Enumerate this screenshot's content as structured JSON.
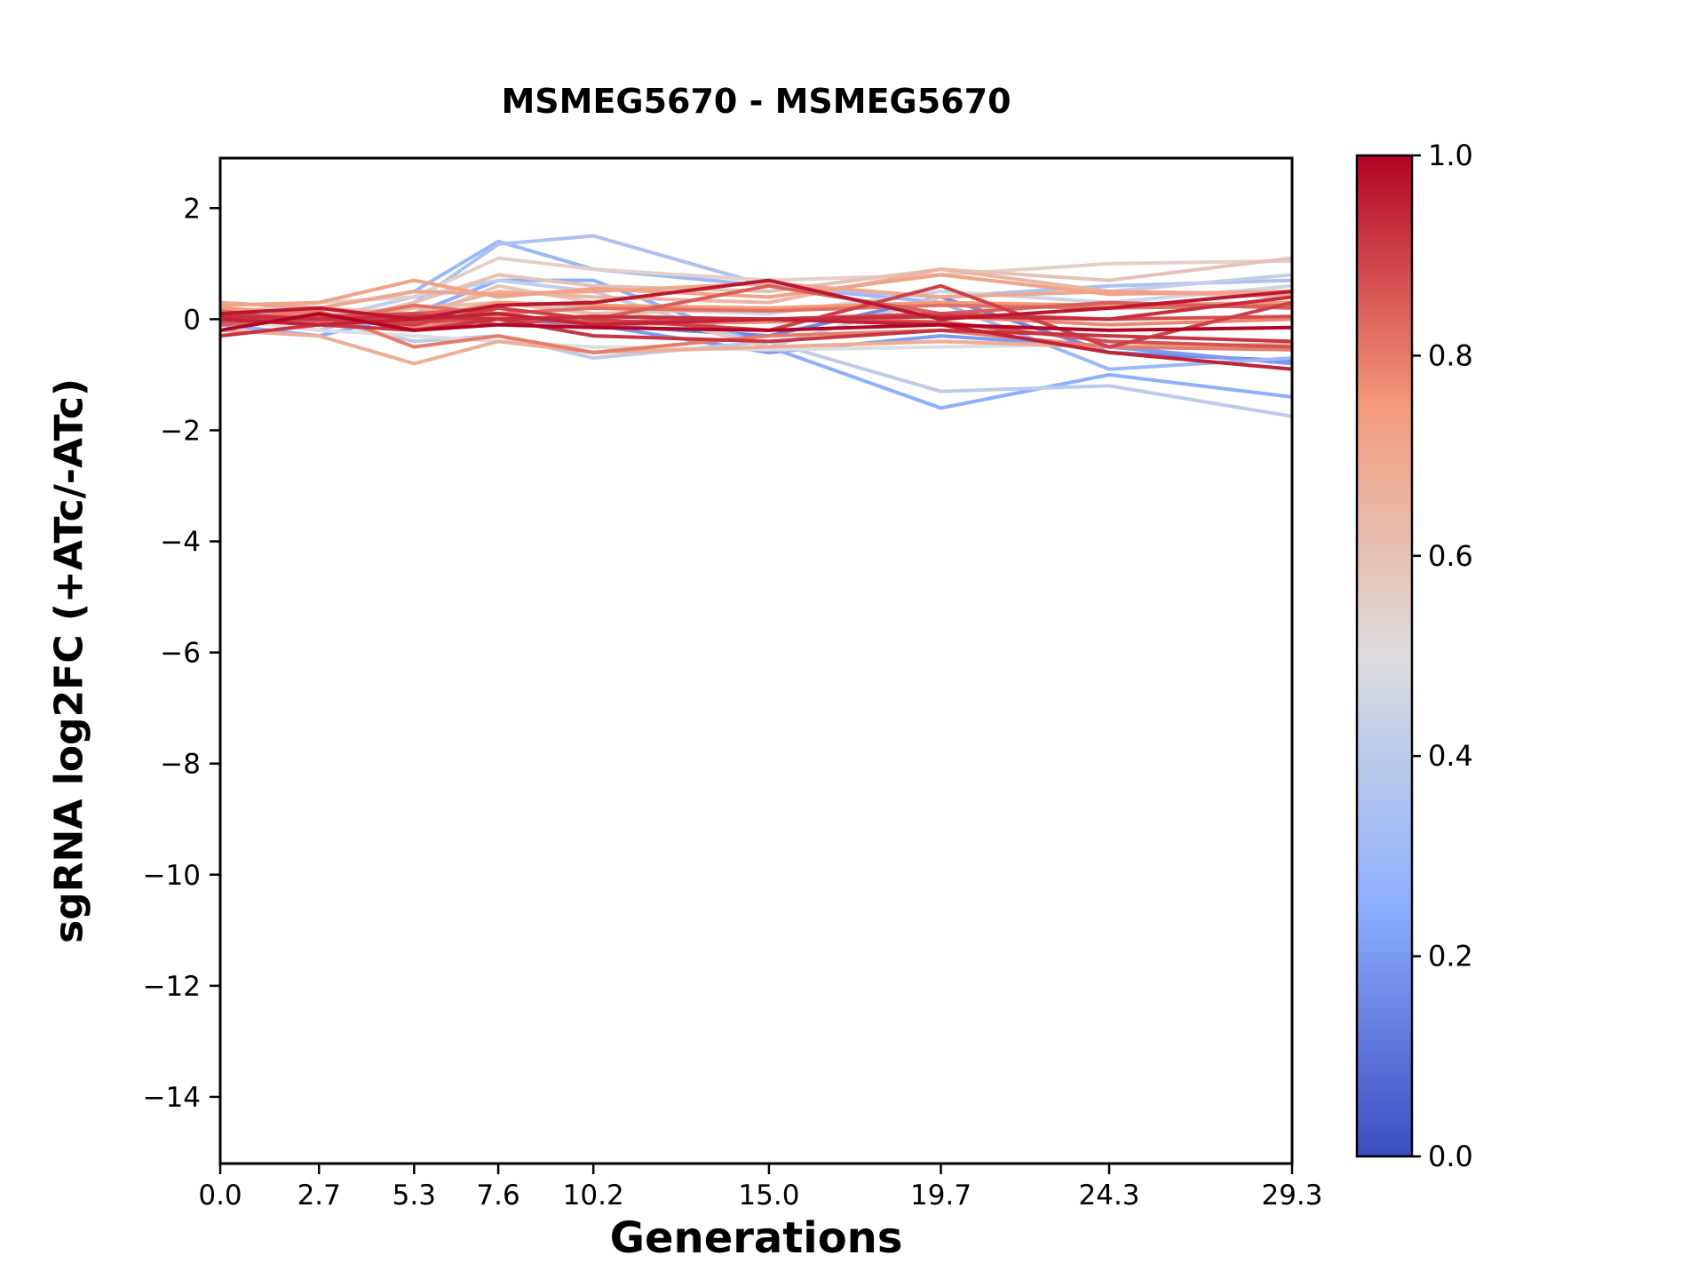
{
  "chart_data": {
    "type": "line",
    "title": "MSMEG5670 - MSMEG5670",
    "xlabel": "Generations",
    "ylabel": "sgRNA log2FC (+ATc/-ATc)",
    "x": [
      0.0,
      2.7,
      5.3,
      7.6,
      10.2,
      15.0,
      19.7,
      24.3,
      29.3
    ],
    "x_tick_labels": [
      "0.0",
      "2.7",
      "5.3",
      "7.6",
      "10.2",
      "15.0",
      "19.7",
      "24.3",
      "29.3"
    ],
    "y_tick_values": [
      2,
      0,
      -2,
      -4,
      -6,
      -8,
      -10,
      -12,
      -14
    ],
    "y_tick_labels": [
      "2",
      "0",
      "−2",
      "−4",
      "−6",
      "−8",
      "−10",
      "−12",
      "−14"
    ],
    "xlim": [
      0.0,
      29.3
    ],
    "ylim": [
      -15.2,
      2.9
    ],
    "grid": false,
    "legend": false,
    "series": [
      {
        "c": 0.35,
        "values": [
          0.1,
          -0.2,
          0.3,
          1.35,
          1.5,
          0.6,
          0.4,
          0.6,
          0.7
        ]
      },
      {
        "c": 0.3,
        "values": [
          0.0,
          0.2,
          0.5,
          1.4,
          0.9,
          0.6,
          0.3,
          -0.9,
          -0.7
        ]
      },
      {
        "c": 0.25,
        "values": [
          -0.1,
          -0.3,
          0.1,
          0.7,
          0.7,
          -0.5,
          -1.6,
          -1.0,
          -1.4
        ]
      },
      {
        "c": 0.4,
        "values": [
          0.2,
          0.0,
          -0.4,
          -0.3,
          -0.7,
          -0.4,
          -1.3,
          -1.2,
          -1.75
        ]
      },
      {
        "c": 0.2,
        "values": [
          0.0,
          0.1,
          0.0,
          0.1,
          -0.1,
          -0.6,
          -0.3,
          -0.5,
          -0.8
        ]
      },
      {
        "c": 0.45,
        "values": [
          -0.2,
          0.1,
          0.2,
          0.3,
          0.2,
          0.1,
          0.5,
          0.3,
          0.6
        ]
      },
      {
        "c": 0.55,
        "values": [
          0.1,
          0.3,
          0.4,
          1.1,
          0.9,
          0.7,
          0.8,
          1.0,
          1.05
        ]
      },
      {
        "c": 0.6,
        "values": [
          0.0,
          -0.1,
          0.3,
          0.8,
          0.6,
          0.5,
          0.9,
          0.7,
          1.1
        ]
      },
      {
        "c": 0.65,
        "values": [
          -0.1,
          0.2,
          0.1,
          0.5,
          0.4,
          0.3,
          0.9,
          0.5,
          0.4
        ]
      },
      {
        "c": 0.5,
        "values": [
          0.0,
          -0.2,
          -0.3,
          -0.4,
          -0.5,
          -0.55,
          -0.5,
          -0.45,
          -0.5
        ]
      },
      {
        "c": 0.7,
        "values": [
          0.3,
          0.2,
          0.5,
          0.45,
          0.5,
          0.65,
          0.4,
          0.5,
          0.45
        ]
      },
      {
        "c": 0.75,
        "values": [
          0.2,
          0.1,
          0.0,
          0.3,
          0.25,
          0.2,
          0.3,
          0.25,
          0.3
        ]
      },
      {
        "c": 0.8,
        "values": [
          0.0,
          0.15,
          -0.5,
          -0.3,
          -0.6,
          -0.3,
          -0.2,
          -0.5,
          -0.55
        ]
      },
      {
        "c": 0.85,
        "values": [
          -0.1,
          0.0,
          0.1,
          0.2,
          0.0,
          0.6,
          0.1,
          0.3,
          0.2
        ]
      },
      {
        "c": 0.9,
        "values": [
          0.1,
          0.0,
          -0.1,
          0.2,
          0.0,
          -0.2,
          0.6,
          -0.5,
          0.3
        ]
      },
      {
        "c": 0.95,
        "values": [
          0.0,
          -0.1,
          0.0,
          0.1,
          -0.1,
          0.0,
          -0.1,
          -0.6,
          -0.9
        ]
      },
      {
        "c": 1.0,
        "values": [
          -0.2,
          0.1,
          -0.2,
          -0.1,
          -0.15,
          -0.2,
          -0.1,
          -0.2,
          -0.15
        ]
      },
      {
        "c": 0.97,
        "values": [
          0.1,
          0.2,
          0.0,
          0.25,
          0.3,
          0.7,
          0.0,
          0.2,
          0.5
        ]
      },
      {
        "c": 0.92,
        "values": [
          -0.3,
          -0.1,
          -0.2,
          0.0,
          -0.3,
          -0.4,
          -0.2,
          -0.3,
          -0.4
        ]
      },
      {
        "c": 0.88,
        "values": [
          0.0,
          0.05,
          0.1,
          -0.1,
          0.05,
          0.0,
          0.1,
          0.0,
          0.05
        ]
      },
      {
        "c": 0.82,
        "values": [
          0.15,
          -0.05,
          0.25,
          0.1,
          0.2,
          0.15,
          0.25,
          0.2,
          0.25
        ]
      },
      {
        "c": 0.78,
        "values": [
          -0.05,
          0.1,
          -0.15,
          0.05,
          -0.1,
          -0.05,
          0.05,
          -0.1,
          0.0
        ]
      },
      {
        "c": 0.72,
        "values": [
          0.25,
          0.3,
          0.7,
          0.4,
          0.55,
          0.4,
          0.8,
          0.45,
          0.5
        ]
      },
      {
        "c": 0.68,
        "values": [
          -0.2,
          -0.3,
          -0.8,
          -0.4,
          -0.6,
          -0.5,
          -0.4,
          -0.5,
          -0.45
        ]
      },
      {
        "c": 0.62,
        "values": [
          0.05,
          0.0,
          0.2,
          0.3,
          0.1,
          0.2,
          0.3,
          0.2,
          0.25
        ]
      },
      {
        "c": 0.58,
        "values": [
          0.0,
          -0.1,
          0.0,
          0.6,
          0.3,
          -0.5,
          -0.4,
          -0.5,
          -0.45
        ]
      },
      {
        "c": 0.93,
        "values": [
          0.05,
          0.0,
          0.05,
          0.0,
          0.05,
          0.0,
          0.05,
          0.0,
          0.4
        ]
      },
      {
        "c": 0.87,
        "values": [
          -0.05,
          0.0,
          -0.05,
          0.0,
          -0.05,
          0.0,
          -0.05,
          -0.4,
          -0.5
        ]
      },
      {
        "c": 0.42,
        "values": [
          0.1,
          0.0,
          0.4,
          0.7,
          0.5,
          -0.5,
          0.4,
          0.5,
          0.8
        ]
      },
      {
        "c": 0.15,
        "values": [
          0.0,
          -0.05,
          0.1,
          0.0,
          -0.1,
          -0.3,
          0.4,
          -0.6,
          -0.75
        ]
      }
    ],
    "colorbar": {
      "tick_values": [
        1.0,
        0.8,
        0.6,
        0.4,
        0.2,
        0.0
      ],
      "tick_labels": [
        "1.0",
        "0.8",
        "0.6",
        "0.4",
        "0.2",
        "0.0"
      ]
    }
  },
  "colormap": {
    "name": "coolwarm",
    "anchors": [
      {
        "t": 0.0,
        "color": "#3b4cc0"
      },
      {
        "t": 0.25,
        "color": "#8caffe"
      },
      {
        "t": 0.5,
        "color": "#dddddd"
      },
      {
        "t": 0.75,
        "color": "#f49a7b"
      },
      {
        "t": 1.0,
        "color": "#b40426"
      }
    ]
  },
  "styles": {
    "axis_color": "#000000",
    "background": "#ffffff"
  }
}
